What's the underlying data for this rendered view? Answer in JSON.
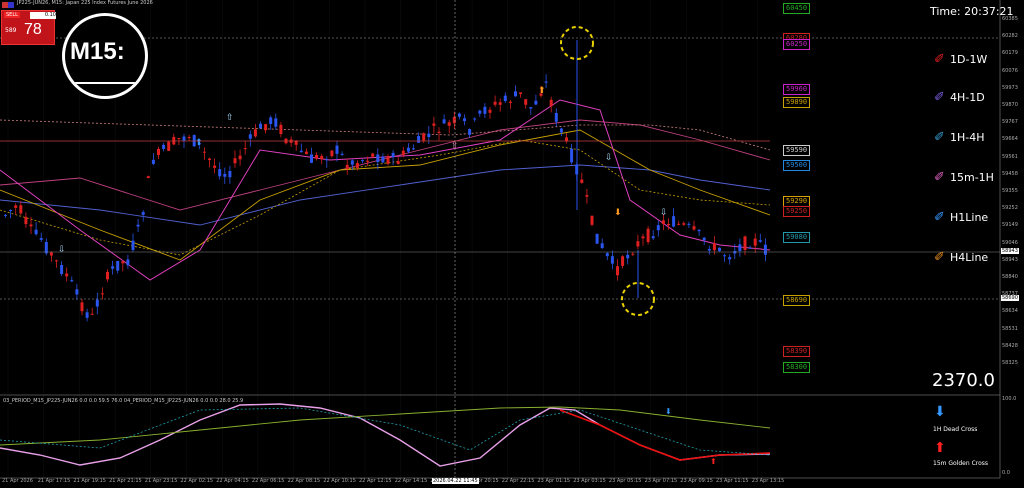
{
  "header": {
    "symbol_line": "JP225-JUN26, M15: Japan 225 Index Futures June 2026",
    "time_label": "Time: 20:37:21"
  },
  "trade_panel": {
    "sell_label": "SELL",
    "lot_value": "0.10",
    "bid_small": "589",
    "bid_big": "78"
  },
  "magnifier": {
    "text": "M15:"
  },
  "price_tags": [
    {
      "text": "60450",
      "color": "#22aa22"
    },
    {
      "text": "60280",
      "color": "#cc2222"
    },
    {
      "text": "60250",
      "color": "#cc22cc"
    },
    {
      "text": "59960",
      "color": "#cc22cc"
    },
    {
      "text": "59890",
      "color": "#c8a000"
    },
    {
      "text": "59590",
      "color": "#cccccc"
    },
    {
      "text": "59500",
      "color": "#2288dd"
    },
    {
      "text": "59290",
      "color": "#d8a000"
    },
    {
      "text": "59250",
      "color": "#cc2222"
    },
    {
      "text": "59080",
      "color": "#2299aa"
    },
    {
      "text": "58690",
      "color": "#c8a000"
    },
    {
      "text": "58390",
      "color": "#cc2222"
    },
    {
      "text": "58300",
      "color": "#22aa22"
    }
  ],
  "y_axis_labels": [
    "60385",
    "60282",
    "60179",
    "60076",
    "59973",
    "59870",
    "59767",
    "59664",
    "59561",
    "59458",
    "59355",
    "59252",
    "59149",
    "59046",
    "58943",
    "58840",
    "58737",
    "58634",
    "58531",
    "58428",
    "58325"
  ],
  "current_price_label": "58943",
  "crosshair_price_label": "58690",
  "range_value": "2370.0",
  "legend": [
    {
      "label": "1D-1W",
      "color": "#e02020"
    },
    {
      "label": "4H-1D",
      "color": "#7a5ce0"
    },
    {
      "label": "1H-4H",
      "color": "#3399cc"
    },
    {
      "label": "15m-1H",
      "color": "#e060c0"
    },
    {
      "label": "H1Line",
      "color": "#3399ff"
    },
    {
      "label": "H4Line",
      "color": "#e08a20"
    }
  ],
  "indicator": {
    "title": "03_PERIOD_M15_JP225-JUN26 0.0 0.0 59.5 76.0 04_PERIOD_M15_JP225-JUN26 0.0 0.0 28.0 25.9",
    "axis_top": "100.0",
    "axis_bottom": "0.0",
    "legend": [
      {
        "label": "1H Dead Cross",
        "color": "#3399ff"
      },
      {
        "label": "15m Golden Cross",
        "color": "#ff2020"
      }
    ]
  },
  "crosshair_time_label": "2026.04.22 11:45",
  "time_axis": [
    "21 Apr 2026",
    "21 Apr 17:15",
    "21 Apr 19:15",
    "21 Apr 21:15",
    "21 Apr 23:15",
    "22 Apr 02:15",
    "22 Apr 04:15",
    "22 Apr 06:15",
    "22 Apr 08:15",
    "22 Apr 10:15",
    "22 Apr 12:15",
    "22 Apr 14:15",
    "22 Apr 16:15",
    "22 Apr 20:15",
    "22 Apr 22:15",
    "23 Apr 01:15",
    "23 Apr 03:15",
    "23 Apr 05:15",
    "23 Apr 07:15",
    "23 Apr 09:15",
    "23 Apr 11:15",
    "23 Apr 13:15"
  ]
}
